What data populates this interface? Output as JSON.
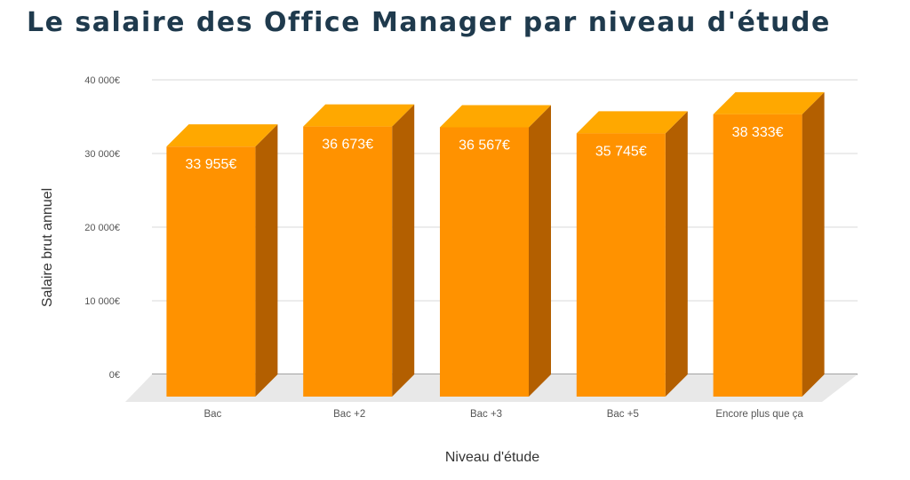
{
  "title": "Le salaire des Office Manager par niveau d'étude",
  "colors": {
    "front": "#ff9200",
    "top": "#ffa800",
    "side": "#b35f00",
    "floor": "#e8e8e8",
    "grid": "#d9d9d9"
  },
  "chart_data": {
    "type": "bar",
    "title": "Le salaire des Office Manager par niveau d'étude",
    "xlabel": "Niveau d'étude",
    "ylabel": "Salaire brut annuel",
    "ylim": [
      0,
      40000
    ],
    "yticks": [
      0,
      10000,
      20000,
      30000,
      40000
    ],
    "ytick_labels": [
      "0€",
      "10 000€",
      "20 000€",
      "30 000€",
      "40 000€"
    ],
    "categories": [
      "Bac",
      "Bac +2",
      "Bac +3",
      "Bac +5",
      "Encore plus que ça"
    ],
    "values": [
      33955,
      36673,
      36567,
      35745,
      38333
    ],
    "value_labels": [
      "33 955€",
      "36 673€",
      "36 567€",
      "35 745€",
      "38 333€"
    ],
    "grid": true,
    "style": "3d"
  }
}
